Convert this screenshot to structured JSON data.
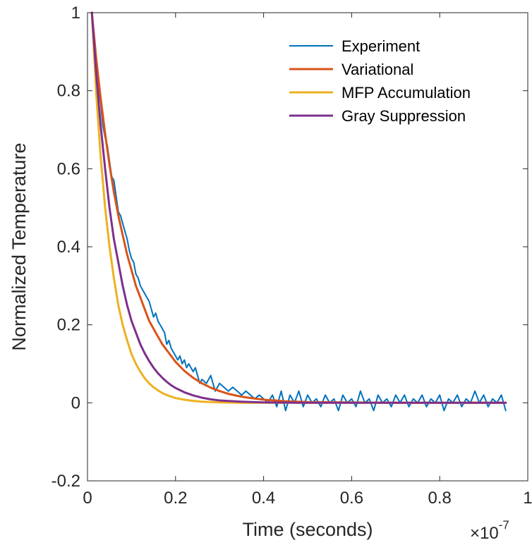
{
  "chart_data": {
    "type": "line",
    "xlabel": "Time (seconds)",
    "ylabel": "Normalized Temperature",
    "x_exponent": {
      "base": "×10",
      "power": "-7"
    },
    "xlim": [
      0,
      1
    ],
    "ylim": [
      -0.2,
      1
    ],
    "x_ticks": [
      0,
      0.2,
      0.4,
      0.6,
      0.8,
      1
    ],
    "x_tick_labels": [
      "0",
      "0.2",
      "0.4",
      "0.6",
      "0.8",
      "1"
    ],
    "y_ticks": [
      -0.2,
      0,
      0.2,
      0.4,
      0.6,
      0.8,
      1
    ],
    "y_tick_labels": [
      "-0.2",
      "0",
      "0.2",
      "0.4",
      "0.6",
      "0.8",
      "1"
    ],
    "grid": false,
    "legend_position": "top-right",
    "series": [
      {
        "name": "Experiment",
        "color": "#0072BD",
        "x": [
          0.01,
          0.015,
          0.02,
          0.025,
          0.03,
          0.035,
          0.04,
          0.045,
          0.05,
          0.055,
          0.06,
          0.065,
          0.07,
          0.075,
          0.08,
          0.085,
          0.09,
          0.095,
          0.1,
          0.105,
          0.11,
          0.115,
          0.12,
          0.125,
          0.13,
          0.135,
          0.14,
          0.145,
          0.15,
          0.155,
          0.16,
          0.165,
          0.17,
          0.175,
          0.18,
          0.185,
          0.19,
          0.195,
          0.2,
          0.205,
          0.21,
          0.215,
          0.22,
          0.225,
          0.23,
          0.235,
          0.24,
          0.245,
          0.25,
          0.255,
          0.26,
          0.27,
          0.28,
          0.29,
          0.3,
          0.31,
          0.32,
          0.33,
          0.34,
          0.35,
          0.36,
          0.37,
          0.38,
          0.39,
          0.4,
          0.41,
          0.42,
          0.43,
          0.44,
          0.45,
          0.46,
          0.47,
          0.48,
          0.49,
          0.5,
          0.51,
          0.52,
          0.53,
          0.54,
          0.55,
          0.56,
          0.57,
          0.58,
          0.59,
          0.6,
          0.61,
          0.62,
          0.63,
          0.64,
          0.65,
          0.66,
          0.67,
          0.68,
          0.69,
          0.7,
          0.71,
          0.72,
          0.73,
          0.74,
          0.75,
          0.76,
          0.77,
          0.78,
          0.79,
          0.8,
          0.81,
          0.82,
          0.83,
          0.84,
          0.85,
          0.86,
          0.87,
          0.88,
          0.89,
          0.9,
          0.91,
          0.92,
          0.93,
          0.94,
          0.95
        ],
        "y": [
          1.0,
          0.91,
          0.84,
          0.8,
          0.77,
          0.71,
          0.68,
          0.66,
          0.62,
          0.58,
          0.57,
          0.53,
          0.49,
          0.48,
          0.46,
          0.44,
          0.42,
          0.39,
          0.37,
          0.36,
          0.33,
          0.32,
          0.3,
          0.29,
          0.28,
          0.27,
          0.26,
          0.24,
          0.22,
          0.23,
          0.21,
          0.2,
          0.19,
          0.18,
          0.15,
          0.16,
          0.14,
          0.13,
          0.12,
          0.11,
          0.12,
          0.1,
          0.11,
          0.09,
          0.1,
          0.09,
          0.08,
          0.09,
          0.07,
          0.05,
          0.06,
          0.05,
          0.07,
          0.03,
          0.05,
          0.04,
          0.03,
          0.04,
          0.03,
          0.02,
          0.03,
          0.02,
          0.01,
          0.02,
          0.01,
          0.0,
          0.02,
          -0.01,
          0.03,
          -0.02,
          0.02,
          0.0,
          0.03,
          -0.01,
          0.02,
          0.0,
          0.01,
          -0.01,
          0.02,
          0.0,
          0.01,
          -0.02,
          0.02,
          0.0,
          0.01,
          -0.01,
          0.03,
          0.0,
          0.01,
          -0.02,
          0.02,
          0.0,
          0.01,
          -0.01,
          0.02,
          0.0,
          0.02,
          -0.01,
          0.01,
          0.0,
          0.02,
          -0.01,
          0.01,
          0.0,
          0.02,
          -0.02,
          0.01,
          0.0,
          0.02,
          -0.01,
          0.01,
          0.0,
          0.03,
          0.0,
          0.02,
          -0.01,
          0.01,
          0.0,
          0.02,
          -0.02
        ]
      },
      {
        "name": "Variational",
        "color": "#D95319",
        "x": [
          0.01,
          0.02,
          0.03,
          0.04,
          0.05,
          0.06,
          0.07,
          0.08,
          0.09,
          0.1,
          0.11,
          0.12,
          0.13,
          0.14,
          0.15,
          0.16,
          0.17,
          0.18,
          0.19,
          0.2,
          0.22,
          0.24,
          0.26,
          0.28,
          0.3,
          0.32,
          0.34,
          0.36,
          0.38,
          0.4,
          0.45,
          0.5,
          0.6,
          0.7,
          0.8,
          0.95
        ],
        "y": [
          1.0,
          0.88,
          0.78,
          0.69,
          0.61,
          0.54,
          0.48,
          0.43,
          0.38,
          0.34,
          0.3,
          0.27,
          0.24,
          0.21,
          0.19,
          0.17,
          0.15,
          0.135,
          0.12,
          0.105,
          0.082,
          0.064,
          0.05,
          0.039,
          0.03,
          0.023,
          0.018,
          0.014,
          0.011,
          0.008,
          0.004,
          0.002,
          0.001,
          0.0,
          0.0,
          0.0
        ]
      },
      {
        "name": "MFP Accumulation",
        "color": "#EDB120",
        "x": [
          0.01,
          0.02,
          0.03,
          0.04,
          0.05,
          0.06,
          0.07,
          0.08,
          0.09,
          0.1,
          0.11,
          0.12,
          0.13,
          0.14,
          0.15,
          0.16,
          0.17,
          0.18,
          0.19,
          0.2,
          0.22,
          0.24,
          0.26,
          0.28,
          0.3,
          0.35,
          0.4,
          0.5,
          0.6,
          0.8,
          0.95
        ],
        "y": [
          1.0,
          0.79,
          0.63,
          0.5,
          0.4,
          0.32,
          0.25,
          0.2,
          0.16,
          0.125,
          0.1,
          0.08,
          0.063,
          0.05,
          0.04,
          0.032,
          0.025,
          0.02,
          0.016,
          0.012,
          0.008,
          0.005,
          0.003,
          0.002,
          0.001,
          0.0,
          0.0,
          0.0,
          0.0,
          0.0,
          0.0
        ]
      },
      {
        "name": "Gray Suppression",
        "color": "#7E2F8E",
        "x": [
          0.01,
          0.02,
          0.03,
          0.04,
          0.05,
          0.06,
          0.07,
          0.08,
          0.09,
          0.1,
          0.11,
          0.12,
          0.13,
          0.14,
          0.15,
          0.16,
          0.17,
          0.18,
          0.19,
          0.2,
          0.22,
          0.24,
          0.26,
          0.28,
          0.3,
          0.35,
          0.4,
          0.5,
          0.6,
          0.8,
          0.95
        ],
        "y": [
          1.0,
          0.84,
          0.71,
          0.6,
          0.5,
          0.42,
          0.36,
          0.3,
          0.25,
          0.21,
          0.18,
          0.15,
          0.127,
          0.107,
          0.09,
          0.076,
          0.064,
          0.054,
          0.045,
          0.038,
          0.027,
          0.019,
          0.013,
          0.009,
          0.006,
          0.003,
          0.001,
          0.0,
          0.0,
          0.0,
          0.0
        ]
      }
    ]
  }
}
